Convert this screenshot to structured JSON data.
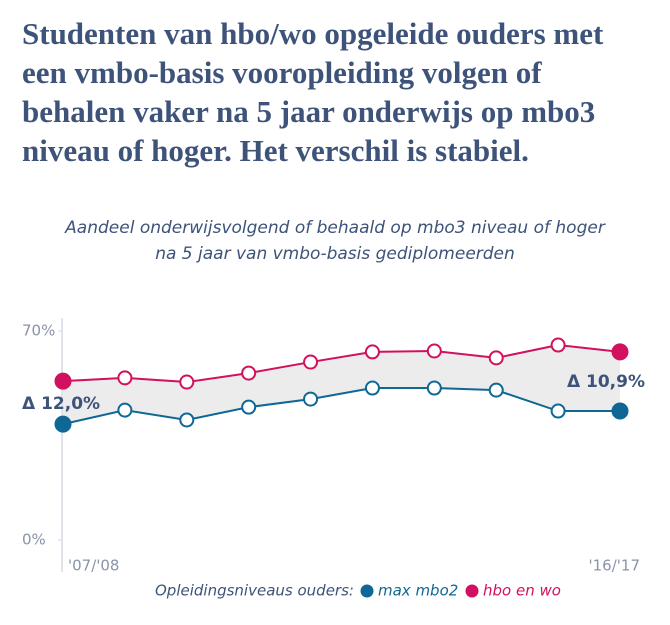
{
  "chart_data": {
    "type": "line",
    "title": "Studenten van hbo/wo opgeleide ouders met een vmbo-basis vooropleiding volgen of behalen vaker na 5 jaar onderwijs op mbo3 niveau of hoger. Het verschil is stabiel.",
    "subtitle": [
      "Aandeel onderwijsvolgend of behaald op mbo3 niveau of hoger",
      "na 5 jaar van vmbo-basis gediplomeerden"
    ],
    "categories": [
      "'07/'08",
      null,
      null,
      null,
      null,
      null,
      null,
      null,
      null,
      "'16/'17"
    ],
    "series": [
      {
        "name": "max mbo2",
        "color": "#0f6796",
        "values": [
          38.8,
          43.5,
          40.2,
          44.5,
          47.2,
          50.9,
          50.9,
          50.2,
          43.2,
          43.2
        ]
      },
      {
        "name": "hbo en wo",
        "color": "#d1105e",
        "values": [
          53.2,
          54.3,
          52.9,
          55.9,
          59.6,
          63.0,
          63.3,
          61.0,
          65.3,
          63.0
        ]
      }
    ],
    "ylim": [
      0,
      70
    ],
    "yticks": [
      {
        "value": 0,
        "label": "0%"
      },
      {
        "value": 70,
        "label": "70%"
      }
    ],
    "annotations": [
      "Δ 12,0%",
      "Δ 10,9%"
    ],
    "legend_title": "Opleidingsniveaus ouders:"
  }
}
